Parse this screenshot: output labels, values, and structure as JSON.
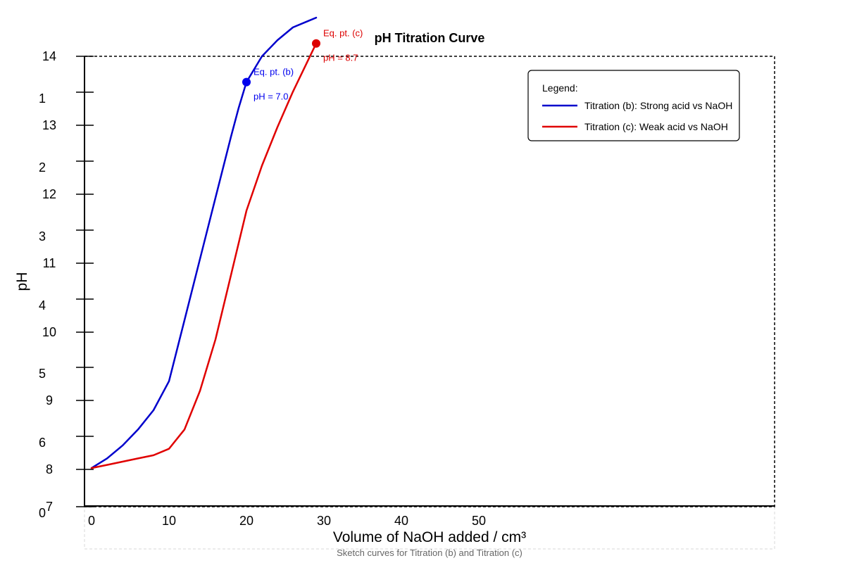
{
  "chart_data": {
    "type": "line",
    "title": "pH Titration Curve",
    "xlabel": "Volume of NaOH added / cm³",
    "ylabel": "pH",
    "caption": "Sketch curves for Titration (b) and Titration (c)",
    "x_ticks": [
      "0",
      "10",
      "20",
      "30",
      "40",
      "50"
    ],
    "y_ticks_left": [
      "14",
      "13",
      "12",
      "11",
      "10",
      "9",
      "8",
      "7"
    ],
    "y_ticks_right": [
      "1",
      "2",
      "3",
      "4",
      "5",
      "6",
      "0"
    ],
    "legend": {
      "title": "Legend:",
      "entries": [
        "Titration (b): Strong acid vs NaOH",
        "Titration (c): Weak acid vs NaOH"
      ],
      "position": "top-right"
    },
    "grid": false,
    "series": [
      {
        "name": "Titration (b): Strong acid vs NaOH",
        "color": "#0000cc",
        "points": [
          [
            0,
            7.6
          ],
          [
            2,
            7.75
          ],
          [
            4,
            7.95
          ],
          [
            6,
            8.2
          ],
          [
            8,
            8.5
          ],
          [
            10,
            8.95
          ],
          [
            12,
            9.9
          ],
          [
            14,
            10.85
          ],
          [
            16,
            11.8
          ],
          [
            18,
            12.75
          ],
          [
            19,
            13.2
          ],
          [
            20,
            13.6
          ],
          [
            22,
            14.0
          ],
          [
            24,
            14.25
          ],
          [
            26,
            14.45
          ],
          [
            28,
            14.55
          ],
          [
            29,
            14.6
          ]
        ]
      },
      {
        "name": "Titration (c): Weak acid vs NaOH",
        "color": "#e00000",
        "points": [
          [
            0,
            7.6
          ],
          [
            2,
            7.65
          ],
          [
            4,
            7.7
          ],
          [
            6,
            7.75
          ],
          [
            8,
            7.8
          ],
          [
            10,
            7.9
          ],
          [
            12,
            8.2
          ],
          [
            14,
            8.8
          ],
          [
            16,
            9.6
          ],
          [
            18,
            10.6
          ],
          [
            20,
            11.6
          ],
          [
            22,
            12.3
          ],
          [
            24,
            12.9
          ],
          [
            26,
            13.45
          ],
          [
            28,
            13.95
          ],
          [
            29,
            14.2
          ]
        ]
      }
    ],
    "annotations": [
      {
        "label": "Eq. pt. (b)",
        "sublabel": "pH = 7.0",
        "x": 20,
        "y": 13.6,
        "color": "#0000ee"
      },
      {
        "label": "Eq. pt. (c)",
        "sublabel": "pH = 8.7",
        "x": 29,
        "y": 14.2,
        "color": "#dd0000"
      }
    ]
  }
}
